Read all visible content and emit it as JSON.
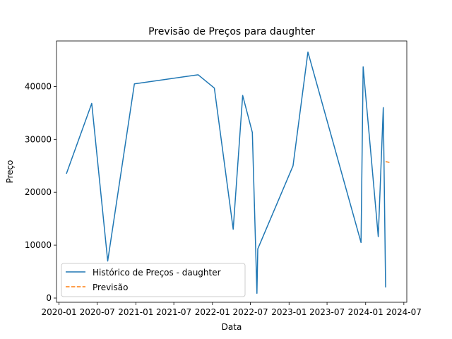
{
  "chart_data": {
    "type": "line",
    "title": "Previsão de Preços para daughter",
    "xlabel": "Data",
    "ylabel": "Preço",
    "x_ticks": [
      "2020-01",
      "2020-07",
      "2021-01",
      "2021-07",
      "2022-01",
      "2022-07",
      "2023-01",
      "2023-07",
      "2024-01",
      "2024-07"
    ],
    "y_ticks": [
      0,
      10000,
      20000,
      30000,
      40000
    ],
    "y_tick_labels": [
      "0",
      "10000",
      "20000",
      "30000",
      "40000"
    ],
    "ylim": [
      -800,
      48600
    ],
    "xlim": [
      "2019-12-20",
      "2024-07-15"
    ],
    "legend_position": "lower left",
    "series": [
      {
        "name": "Histórico de Preços - daughter",
        "color": "#1f77b4",
        "style": "solid",
        "x": [
          "2020-02-05",
          "2020-06-05",
          "2020-08-20",
          "2020-12-25",
          "2021-10-25",
          "2022-01-10",
          "2022-04-10",
          "2022-05-25",
          "2022-07-10",
          "2022-08-01",
          "2022-08-05",
          "2023-01-20",
          "2023-04-01",
          "2023-12-10",
          "2023-12-20",
          "2024-03-01",
          "2024-03-25",
          "2024-04-05"
        ],
        "y": [
          23500,
          36800,
          7000,
          40500,
          42200,
          39700,
          13000,
          38300,
          31300,
          900,
          9300,
          25000,
          46500,
          10500,
          43700,
          11600,
          36000,
          2000
        ]
      },
      {
        "name": "Previsão",
        "color": "#ff7f0e",
        "style": "dashed",
        "x": [
          "2024-04-05",
          "2024-05-01"
        ],
        "y": [
          25800,
          25600
        ]
      }
    ]
  }
}
